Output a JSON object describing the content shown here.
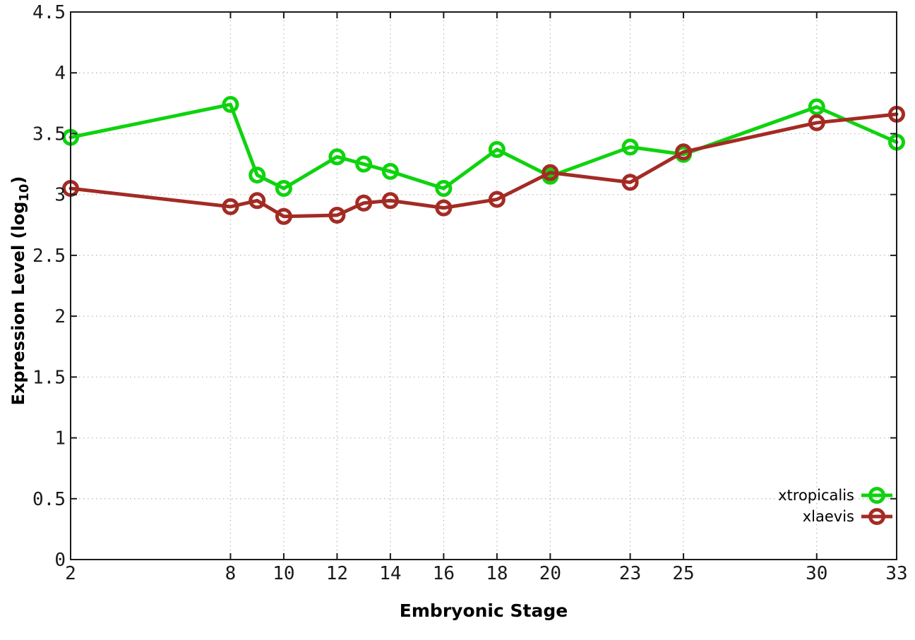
{
  "chart_data": {
    "type": "line",
    "title": "",
    "xlabel": "Embryonic Stage",
    "ylabel": "Expression Level (log10)",
    "ylabel_parts": {
      "main": "Expression Level (log",
      "sub": "10",
      "close": ")"
    },
    "x": [
      2,
      8,
      9,
      10,
      12,
      13,
      14,
      16,
      18,
      20,
      23,
      25,
      30,
      33
    ],
    "series": [
      {
        "name": "xtropicalis",
        "color": "#0ed30e",
        "values": [
          3.47,
          3.74,
          3.16,
          3.05,
          3.31,
          3.25,
          3.19,
          3.05,
          3.37,
          3.15,
          3.39,
          3.33,
          3.72,
          3.43
        ]
      },
      {
        "name": "xlaevis",
        "color": "#a32b24",
        "values": [
          3.05,
          2.9,
          2.95,
          2.82,
          2.83,
          2.93,
          2.95,
          2.89,
          2.96,
          3.18,
          3.1,
          3.35,
          3.59,
          3.66
        ]
      }
    ],
    "xlim": [
      2,
      33
    ],
    "ylim": [
      0,
      4.5
    ],
    "xticks": [
      2,
      8,
      10,
      12,
      14,
      16,
      18,
      20,
      23,
      25,
      30,
      33
    ],
    "yticks": [
      0,
      0.5,
      1,
      1.5,
      2,
      2.5,
      3,
      3.5,
      4,
      4.5
    ],
    "grid": true,
    "legend_position": "bottom-right",
    "marker": "open-circle"
  },
  "colors": {
    "background": "#ffffff",
    "grid": "#b5b5b5",
    "axis": "#1a1a1a"
  }
}
